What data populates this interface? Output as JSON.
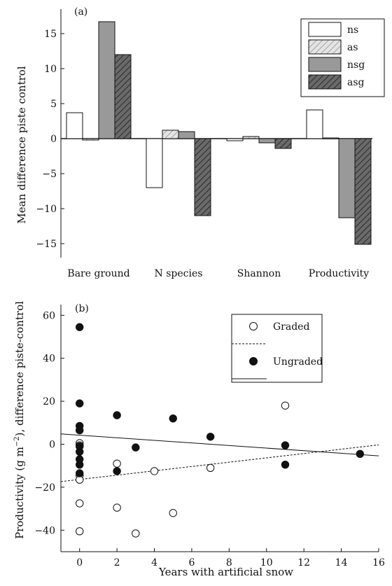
{
  "chart_data": [
    {
      "type": "bar",
      "panel_label": "(a)",
      "ylabel": "Mean difference piste control",
      "ylim": [
        -17,
        18.5
      ],
      "yticks": [
        -15,
        -10,
        -5,
        0,
        5,
        10,
        15
      ],
      "ytick_labels": [
        "−15",
        "−10",
        "−5",
        "0",
        "5",
        "10",
        "15"
      ],
      "categories": [
        "Bare ground",
        "N species",
        "Shannon",
        "Productivity"
      ],
      "series": [
        {
          "name": "ns",
          "fill": "#ffffff",
          "pattern": "none",
          "values": [
            3.7,
            -7.0,
            -0.3,
            4.1
          ]
        },
        {
          "name": "as",
          "fill": "#dedede",
          "pattern": "light-hatch",
          "values": [
            -0.2,
            1.2,
            0.3,
            0.1
          ]
        },
        {
          "name": "nsg",
          "fill": "#999999",
          "pattern": "none",
          "values": [
            16.7,
            1.0,
            -0.6,
            -11.3
          ]
        },
        {
          "name": "asg",
          "fill": "#555555",
          "pattern": "dark-hatch",
          "values": [
            12.0,
            -11.0,
            -1.4,
            -15.1
          ]
        }
      ],
      "legend_position": "top-right",
      "grid": false
    },
    {
      "type": "scatter",
      "panel_label": "(b)",
      "xlabel": "Years with artificial snow",
      "ylabel_prefix": "Productivity (g m",
      "ylabel_sup": "−2",
      "ylabel_suffix": "), difference piste-control",
      "xlim": [
        -1,
        16
      ],
      "ylim": [
        -50,
        65
      ],
      "xticks": [
        0,
        2,
        4,
        6,
        8,
        10,
        12,
        14,
        16
      ],
      "xtick_labels": [
        "0",
        "2",
        "4",
        "6",
        "8",
        "10",
        "12",
        "14",
        "16"
      ],
      "yticks": [
        -40,
        -20,
        0,
        20,
        40,
        60
      ],
      "ytick_labels": [
        "−40",
        "−20",
        "0",
        "20",
        "40",
        "60"
      ],
      "series": [
        {
          "name": "Graded",
          "marker": "open-circle",
          "line": "dashed",
          "fit": [
            [
              -1,
              -17.4
            ],
            [
              16,
              -0.3
            ]
          ],
          "points": [
            [
              0,
              0.5
            ],
            [
              0,
              -0.5
            ],
            [
              0,
              -14.5
            ],
            [
              0,
              -16.5
            ],
            [
              0,
              -27.5
            ],
            [
              0,
              -40.5
            ],
            [
              2,
              -9
            ],
            [
              2,
              -29.5
            ],
            [
              3,
              -41.5
            ],
            [
              4,
              -12.5
            ],
            [
              5,
              -32
            ],
            [
              7,
              -11
            ],
            [
              11,
              18
            ]
          ]
        },
        {
          "name": "Ungraded",
          "marker": "filled-circle",
          "line": "solid",
          "fit": [
            [
              -1,
              4.8
            ],
            [
              16,
              -5.4
            ]
          ],
          "points": [
            [
              0,
              54.5
            ],
            [
              0,
              19
            ],
            [
              0,
              8.5
            ],
            [
              0,
              6.5
            ],
            [
              0,
              -1
            ],
            [
              0,
              -3.5
            ],
            [
              0,
              -7
            ],
            [
              0,
              -9.5
            ],
            [
              0,
              -13.5
            ],
            [
              2,
              13.5
            ],
            [
              2,
              -12.5
            ],
            [
              3,
              -1.5
            ],
            [
              5,
              12
            ],
            [
              7,
              3.5
            ],
            [
              11,
              -0.5
            ],
            [
              11,
              -9.5
            ],
            [
              15,
              -4.5
            ]
          ]
        }
      ],
      "legend_position": "top-right",
      "grid": false
    }
  ]
}
